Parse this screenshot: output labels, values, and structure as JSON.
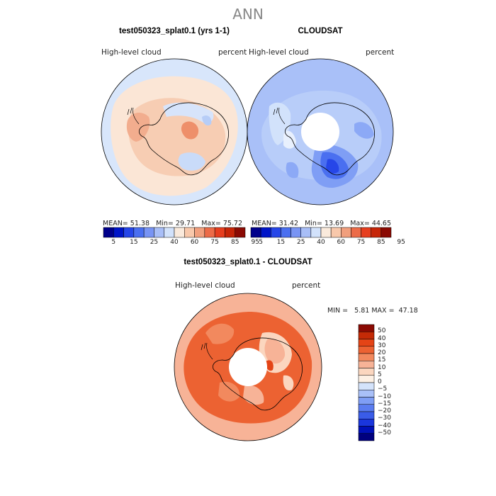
{
  "title": "ANN",
  "colors": {
    "scale": [
      "#00008b",
      "#0015c8",
      "#2646e8",
      "#4a6ff0",
      "#7894f4",
      "#a8bef7",
      "#d2e2fb",
      "#faeadc",
      "#f8c8ab",
      "#f19f7d",
      "#ec6b48",
      "#e63e1f",
      "#c62508",
      "#8b0a03"
    ],
    "diff_scale": [
      "#00007f",
      "#0010b8",
      "#1a36dd",
      "#3a5ce8",
      "#5a7cf0",
      "#7f9ef5",
      "#a9c0f8",
      "#d4e3fb",
      "#fdf0e4",
      "#fbd6bf",
      "#f7b397",
      "#f2895e",
      "#ec6232",
      "#e44416",
      "#c42a06",
      "#8b0a03"
    ]
  },
  "chart_data": [
    {
      "type": "heatmap",
      "title": "test050323_splat0.1 (yrs 1-1)",
      "left_label": "High-level cloud",
      "right_label": "percent",
      "stats": {
        "mean_label": "MEAN=",
        "mean": "51.38",
        "min_label": "Min=",
        "min": "29.71",
        "max_label": "Max=",
        "max": "75.72"
      },
      "colorbar_ticks": [
        "5",
        "15",
        "25",
        "40",
        "60",
        "75",
        "85",
        "95"
      ]
    },
    {
      "type": "heatmap",
      "title": "CLOUDSAT",
      "left_label": "High-level cloud",
      "right_label": "percent",
      "stats": {
        "mean_label": "MEAN=",
        "mean": "31.42",
        "min_label": "Min=",
        "min": "13.69",
        "max_label": "Max=",
        "max": "44.65"
      },
      "colorbar_ticks": [
        "5",
        "15",
        "25",
        "40",
        "60",
        "75",
        "85",
        "95"
      ]
    },
    {
      "type": "heatmap",
      "title": "test050323_splat0.1 - CLOUDSAT",
      "left_label": "High-level cloud",
      "right_label": "percent",
      "stats": {
        "min_label": "MIN =",
        "min": "5.81",
        "max_label": "MAX =",
        "max": "47.18"
      },
      "colorbar_ticks": [
        "50",
        "40",
        "30",
        "20",
        "15",
        "10",
        "5",
        "0",
        "−5",
        "−10",
        "−15",
        "−20",
        "−30",
        "−40",
        "−50"
      ]
    }
  ]
}
